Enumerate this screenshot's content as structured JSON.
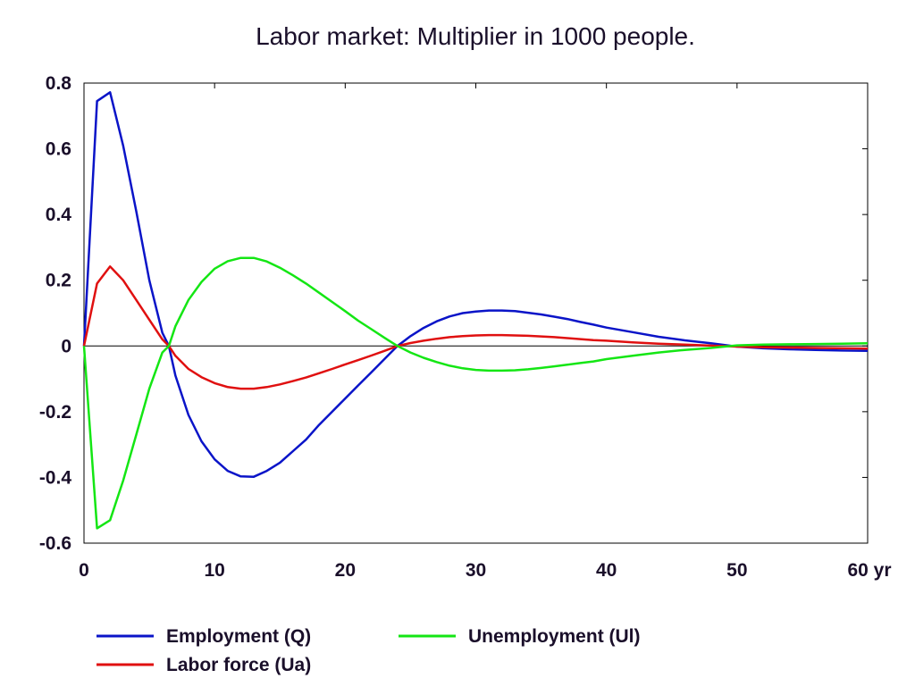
{
  "chart_data": {
    "type": "line",
    "title": "Labor market: Multiplier in 1000 people.",
    "xlabel": "",
    "ylabel": "",
    "x_unit_label": "yr",
    "xlim": [
      0,
      60
    ],
    "ylim": [
      -0.6,
      0.8
    ],
    "x_ticks": [
      0,
      10,
      20,
      30,
      40,
      50,
      60
    ],
    "x_tick_labels": [
      "0",
      "10",
      "20",
      "30",
      "40",
      "50",
      "60"
    ],
    "y_ticks": [
      0.8,
      0.6,
      0.4,
      0.2,
      0,
      -0.2,
      -0.4,
      -0.6
    ],
    "y_tick_labels": [
      "0.8",
      "0.6",
      "0.4",
      "0.2",
      "0",
      "-0.2",
      "-0.4",
      "-0.6"
    ],
    "grid": false,
    "legend_position": "bottom",
    "series": [
      {
        "name": "Employment (Q)",
        "color": "#0a14c8",
        "points": [
          [
            0,
            0
          ],
          [
            1,
            0.745
          ],
          [
            2,
            0.772
          ],
          [
            3,
            0.61
          ],
          [
            4,
            0.41
          ],
          [
            5,
            0.2
          ],
          [
            6,
            0.04
          ],
          [
            6.5,
            0
          ],
          [
            7,
            -0.09
          ],
          [
            8,
            -0.21
          ],
          [
            9,
            -0.29
          ],
          [
            10,
            -0.345
          ],
          [
            11,
            -0.38
          ],
          [
            12,
            -0.397
          ],
          [
            13,
            -0.398
          ],
          [
            14,
            -0.38
          ],
          [
            15,
            -0.355
          ],
          [
            16,
            -0.32
          ],
          [
            17,
            -0.285
          ],
          [
            18,
            -0.24
          ],
          [
            19,
            -0.2
          ],
          [
            20,
            -0.16
          ],
          [
            21,
            -0.12
          ],
          [
            22,
            -0.08
          ],
          [
            23,
            -0.04
          ],
          [
            24,
            0
          ],
          [
            25,
            0.03
          ],
          [
            26,
            0.055
          ],
          [
            27,
            0.075
          ],
          [
            28,
            0.09
          ],
          [
            29,
            0.1
          ],
          [
            30,
            0.105
          ],
          [
            31,
            0.108
          ],
          [
            32,
            0.108
          ],
          [
            33,
            0.106
          ],
          [
            34,
            0.101
          ],
          [
            35,
            0.096
          ],
          [
            36,
            0.089
          ],
          [
            37,
            0.082
          ],
          [
            38,
            0.073
          ],
          [
            39,
            0.065
          ],
          [
            40,
            0.056
          ],
          [
            42,
            0.042
          ],
          [
            44,
            0.028
          ],
          [
            46,
            0.017
          ],
          [
            48,
            0.008
          ],
          [
            50,
            -0.002
          ],
          [
            52,
            -0.007
          ],
          [
            54,
            -0.01
          ],
          [
            56,
            -0.012
          ],
          [
            58,
            -0.014
          ],
          [
            60,
            -0.015
          ]
        ]
      },
      {
        "name": "Labor force (Ua)",
        "color": "#e01010",
        "points": [
          [
            0,
            0
          ],
          [
            1,
            0.19
          ],
          [
            2,
            0.242
          ],
          [
            3,
            0.2
          ],
          [
            4,
            0.14
          ],
          [
            5,
            0.08
          ],
          [
            6,
            0.02
          ],
          [
            6.5,
            0
          ],
          [
            7,
            -0.03
          ],
          [
            8,
            -0.07
          ],
          [
            9,
            -0.095
          ],
          [
            10,
            -0.113
          ],
          [
            11,
            -0.125
          ],
          [
            12,
            -0.13
          ],
          [
            13,
            -0.13
          ],
          [
            14,
            -0.125
          ],
          [
            15,
            -0.117
          ],
          [
            16,
            -0.107
          ],
          [
            17,
            -0.096
          ],
          [
            18,
            -0.083
          ],
          [
            19,
            -0.07
          ],
          [
            20,
            -0.056
          ],
          [
            21,
            -0.043
          ],
          [
            22,
            -0.029
          ],
          [
            23,
            -0.015
          ],
          [
            24,
            0
          ],
          [
            25,
            0.009
          ],
          [
            26,
            0.016
          ],
          [
            27,
            0.022
          ],
          [
            28,
            0.027
          ],
          [
            29,
            0.03
          ],
          [
            30,
            0.032
          ],
          [
            31,
            0.033
          ],
          [
            32,
            0.033
          ],
          [
            33,
            0.032
          ],
          [
            34,
            0.031
          ],
          [
            35,
            0.029
          ],
          [
            36,
            0.027
          ],
          [
            37,
            0.024
          ],
          [
            38,
            0.021
          ],
          [
            39,
            0.018
          ],
          [
            40,
            0.016
          ],
          [
            42,
            0.011
          ],
          [
            44,
            0.007
          ],
          [
            46,
            0.004
          ],
          [
            48,
            0.001
          ],
          [
            50,
            -0.002
          ],
          [
            52,
            -0.004
          ],
          [
            54,
            -0.005
          ],
          [
            56,
            -0.006
          ],
          [
            58,
            -0.007
          ],
          [
            60,
            -0.008
          ]
        ]
      },
      {
        "name": "Unemployment (Ul)",
        "color": "#14e614",
        "points": [
          [
            0,
            0
          ],
          [
            1,
            -0.555
          ],
          [
            2,
            -0.53
          ],
          [
            3,
            -0.41
          ],
          [
            4,
            -0.27
          ],
          [
            5,
            -0.13
          ],
          [
            6,
            -0.02
          ],
          [
            6.5,
            0
          ],
          [
            7,
            0.06
          ],
          [
            8,
            0.14
          ],
          [
            9,
            0.195
          ],
          [
            10,
            0.235
          ],
          [
            11,
            0.258
          ],
          [
            12,
            0.268
          ],
          [
            13,
            0.268
          ],
          [
            14,
            0.257
          ],
          [
            15,
            0.238
          ],
          [
            16,
            0.215
          ],
          [
            17,
            0.19
          ],
          [
            18,
            0.162
          ],
          [
            19,
            0.134
          ],
          [
            20,
            0.106
          ],
          [
            21,
            0.077
          ],
          [
            22,
            0.051
          ],
          [
            23,
            0.025
          ],
          [
            24,
            0
          ],
          [
            25,
            -0.02
          ],
          [
            26,
            -0.036
          ],
          [
            27,
            -0.049
          ],
          [
            28,
            -0.06
          ],
          [
            29,
            -0.068
          ],
          [
            30,
            -0.073
          ],
          [
            31,
            -0.075
          ],
          [
            32,
            -0.075
          ],
          [
            33,
            -0.074
          ],
          [
            34,
            -0.071
          ],
          [
            35,
            -0.067
          ],
          [
            36,
            -0.062
          ],
          [
            37,
            -0.057
          ],
          [
            38,
            -0.052
          ],
          [
            39,
            -0.047
          ],
          [
            40,
            -0.04
          ],
          [
            42,
            -0.03
          ],
          [
            44,
            -0.02
          ],
          [
            46,
            -0.012
          ],
          [
            48,
            -0.006
          ],
          [
            50,
            0.002
          ],
          [
            52,
            0.004
          ],
          [
            54,
            0.005
          ],
          [
            56,
            0.006
          ],
          [
            58,
            0.007
          ],
          [
            60,
            0.008
          ]
        ]
      }
    ]
  }
}
